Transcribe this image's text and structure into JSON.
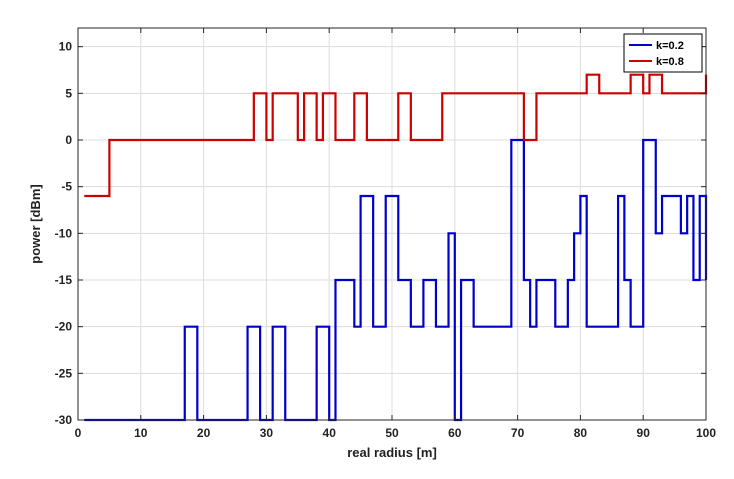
{
  "chart_data": {
    "type": "line",
    "step": true,
    "title": "",
    "xlabel": "real radius [m]",
    "ylabel": "power [dBm]",
    "xlim": [
      0,
      100
    ],
    "ylim": [
      -30,
      12
    ],
    "xticks": [
      0,
      10,
      20,
      30,
      40,
      50,
      60,
      70,
      80,
      90,
      100
    ],
    "yticks": [
      -30,
      -25,
      -20,
      -15,
      -10,
      -5,
      0,
      5,
      10
    ],
    "grid": true,
    "legend_position": "top-right",
    "series": [
      {
        "name": "k=0.2",
        "color": "#0000cc",
        "x": [
          1,
          17,
          19,
          27,
          29,
          31,
          33,
          38,
          40,
          41,
          44,
          45,
          47,
          49,
          51,
          53,
          55,
          57,
          59,
          60,
          61,
          63,
          69,
          71,
          72,
          73,
          76,
          78,
          79,
          80,
          81,
          82,
          86,
          87,
          88,
          90,
          92,
          93,
          95,
          96,
          97,
          98,
          99,
          100
        ],
        "y": [
          -30,
          -20,
          -30,
          -20,
          -30,
          -20,
          -30,
          -20,
          -30,
          -15,
          -20,
          -6,
          -20,
          -6,
          -15,
          -20,
          -15,
          -20,
          -10,
          -30,
          -15,
          -20,
          0,
          -15,
          -20,
          -15,
          -20,
          -15,
          -10,
          -6,
          -20,
          -20,
          -6,
          -15,
          -20,
          0,
          -10,
          -6,
          -6,
          -10,
          -6,
          -15,
          -6,
          -15
        ]
      },
      {
        "name": "k=0.8",
        "color": "#cc0000",
        "x": [
          1,
          5,
          28,
          30,
          31,
          35,
          36,
          38,
          39,
          41,
          42,
          44,
          46,
          51,
          53,
          58,
          71,
          73,
          81,
          83,
          88,
          90,
          91,
          93,
          100
        ],
        "y": [
          -6,
          0,
          5,
          0,
          5,
          0,
          5,
          0,
          5,
          0,
          0,
          5,
          0,
          5,
          0,
          5,
          0,
          5,
          7,
          5,
          7,
          5,
          7,
          5,
          7
        ]
      }
    ]
  }
}
